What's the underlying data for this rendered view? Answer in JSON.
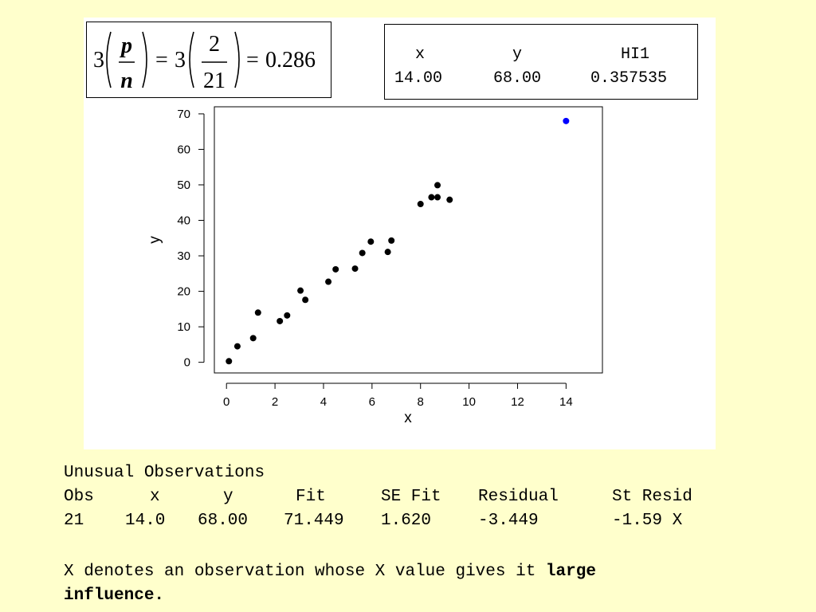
{
  "formula": {
    "coef": "3",
    "p": "p",
    "n": "n",
    "equals": "=",
    "num": "2",
    "den": "21",
    "result": "0.286"
  },
  "stats_table": {
    "headers": [
      "x",
      "y",
      "HI1"
    ],
    "values": [
      "14.00",
      "68.00",
      "0.357535"
    ]
  },
  "chart_data": {
    "type": "scatter",
    "xlabel": "x",
    "ylabel": "y",
    "xlim": [
      -0.5,
      15.5
    ],
    "ylim": [
      -3,
      72
    ],
    "xticks": [
      0,
      2,
      4,
      6,
      8,
      10,
      12,
      14
    ],
    "yticks": [
      0,
      10,
      20,
      30,
      40,
      50,
      60,
      70
    ],
    "grid": false,
    "point_color": "#000000",
    "highlight_color": "#0000ff",
    "points": [
      {
        "x": 0.1,
        "y": 0.3
      },
      {
        "x": 0.45,
        "y": 4.5
      },
      {
        "x": 1.1,
        "y": 6.8
      },
      {
        "x": 1.3,
        "y": 14.0
      },
      {
        "x": 2.2,
        "y": 11.6
      },
      {
        "x": 2.5,
        "y": 13.2
      },
      {
        "x": 3.05,
        "y": 20.2
      },
      {
        "x": 3.25,
        "y": 17.6
      },
      {
        "x": 4.2,
        "y": 22.7
      },
      {
        "x": 4.5,
        "y": 26.2
      },
      {
        "x": 5.3,
        "y": 26.4
      },
      {
        "x": 5.6,
        "y": 30.8
      },
      {
        "x": 5.95,
        "y": 34.0
      },
      {
        "x": 6.65,
        "y": 31.1
      },
      {
        "x": 6.8,
        "y": 34.3
      },
      {
        "x": 8.0,
        "y": 44.6
      },
      {
        "x": 8.45,
        "y": 46.5
      },
      {
        "x": 8.7,
        "y": 46.5
      },
      {
        "x": 8.7,
        "y": 49.9
      },
      {
        "x": 9.2,
        "y": 45.8
      },
      {
        "x": 14.0,
        "y": 68.0,
        "highlight": true
      }
    ]
  },
  "unusual": {
    "title": "Unusual Observations",
    "headers": [
      "Obs",
      "x",
      "y",
      "Fit",
      "SE Fit",
      "Residual",
      "St Resid"
    ],
    "row": [
      "21",
      "14.0",
      "68.00",
      "71.449",
      "1.620",
      "-3.449",
      "-1.59 X"
    ]
  },
  "note": {
    "prefix": "X denotes an observation whose X value gives it ",
    "bold1": "large",
    "bold2": "influence."
  }
}
